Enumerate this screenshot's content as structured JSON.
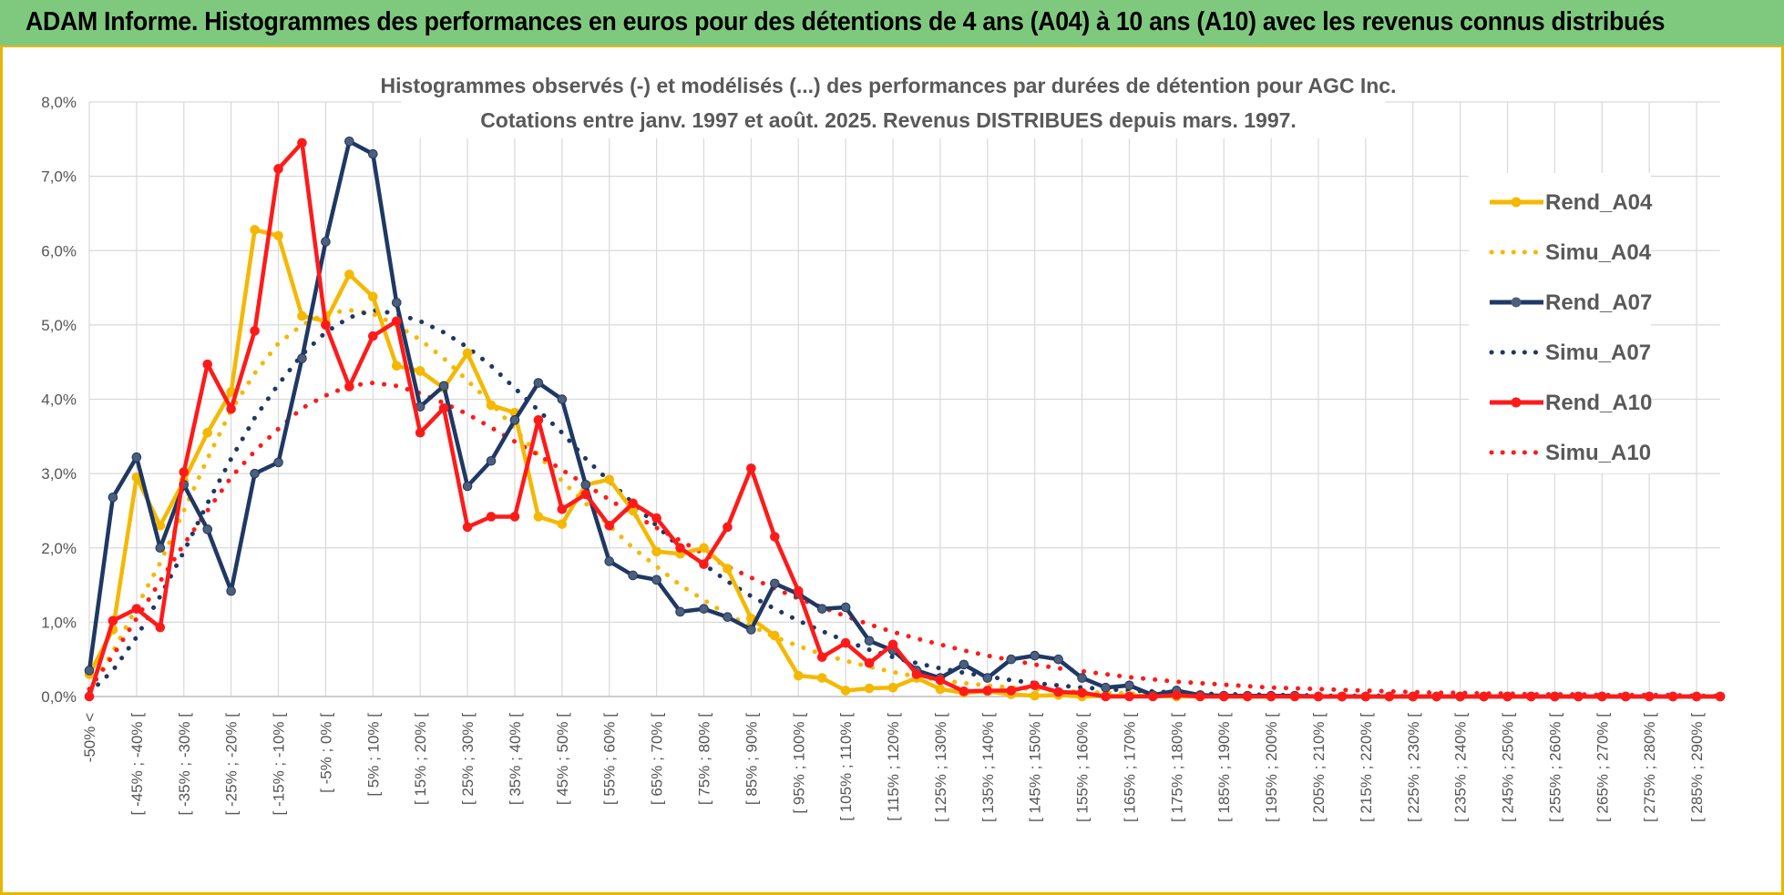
{
  "header": {
    "title": "ADAM Informe. Histogrammes des performances en euros pour des détentions de 4 ans (A04) à 10 ans (A10) avec les revenus connus distribués"
  },
  "chart_data": {
    "type": "line",
    "title_line1": "Histogrammes observés (-) et modélisés (...) des performances par durées de détention pour AGC Inc.",
    "title_line2": "Cotations entre janv. 1997 et août. 2025. Revenus DISTRIBUES depuis mars. 1997.",
    "y_ticks": [
      "0,0%",
      "1,0%",
      "2,0%",
      "3,0%",
      "4,0%",
      "5,0%",
      "6,0%",
      "7,0%",
      "8,0%"
    ],
    "ylim": [
      0,
      8
    ],
    "grid": true,
    "legend_position": "right",
    "categories": [
      "-50% <",
      "[ -50% ; -45% [",
      "[ -45% ; -40% [",
      "[ -40% ; -35% [",
      "[ -35% ; -30% [",
      "[ -30% ; -25% [",
      "[ -25% ; -20% [",
      "[ -20% ; -15% [",
      "[ -15% ; -10% [",
      "[ -10% ; -5% [",
      "[ -5% ; 0% [",
      "[ 0% ; 5% [",
      "[ 5% ; 10% [",
      "[ 10% ; 15% [",
      "[ 15% ; 20% [",
      "[ 20% ; 25% [",
      "[ 25% ; 30% [",
      "[ 30% ; 35% [",
      "[ 35% ; 40% [",
      "[ 40% ; 45% [",
      "[ 45% ; 50% [",
      "[ 50% ; 55% [",
      "[ 55% ; 60% [",
      "[ 60% ; 65% [",
      "[ 65% ; 70% [",
      "[ 70% ; 75% [",
      "[ 75% ; 80% [",
      "[ 80% ; 85% [",
      "[ 85% ; 90% [",
      "[ 90% ; 95% [",
      "[ 95% ; 100% [",
      "[ 100% ; 105% [",
      "[ 105% ; 110% [",
      "[ 110% ; 115% [",
      "[ 115% ; 120% [",
      "[ 120% ; 125% [",
      "[ 125% ; 130% [",
      "[ 130% ; 135% [",
      "[ 135% ; 140% [",
      "[ 140% ; 145% [",
      "[ 145% ; 150% [",
      "[ 150% ; 155% [",
      "[ 155% ; 160% [",
      "[ 160% ; 165% [",
      "[ 165% ; 170% [",
      "[ 170% ; 175% [",
      "[ 175% ; 180% [",
      "[ 180% ; 185% [",
      "[ 185% ; 190% [",
      "[ 190% ; 195% [",
      "[ 195% ; 200% [",
      "[ 200% ; 205% [",
      "[ 205% ; 210% [",
      "[ 210% ; 215% [",
      "[ 215% ; 220% [",
      "[ 220% ; 225% [",
      "[ 225% ; 230% [",
      "[ 230% ; 235% [",
      "[ 235% ; 240% [",
      "[ 240% ; 245% [",
      "[ 245% ; 250% [",
      "[ 250% ; 255% [",
      "[ 255% ; 260% [",
      "[ 260% ; 265% [",
      "[ 265% ; 270% [",
      "[ 270% ; 275% [",
      "[ 275% ; 280% [",
      "[ 280% ; 285% [",
      "[ 285% ; 290% [",
      "[ 290% ; 295% ["
    ],
    "visible_category_labels": [
      "-50% <",
      "[ -45% ; -40% [",
      "[ -35% ; -30% [",
      "[ -25% ; -20% [",
      "[ -15% ; -10% [",
      "[ -5% ; 0% [",
      "[ 5% ; 10% [",
      "[ 15% ; 20% [",
      "[ 25% ; 30% [",
      "[ 35% ; 40% [",
      "[ 45% ; 50% [",
      "[ 55% ; 60% [",
      "[ 65% ; 70% [",
      "[ 75% ; 80% [",
      "[ 85% ; 90% [",
      "[ 95% ; 100% [",
      "[ 105% ; 110% [",
      "[ 115% ; 120% [",
      "[ 125% ; 130% [",
      "[ 135% ; 140% [",
      "[ 145% ; 150% [",
      "[ 155% ; 160% [",
      "[ 165% ; 170% [",
      "[ 175% ; 180% [",
      "[ 185% ; 190% [",
      "[ 195% ; 200% [",
      "[ 205% ; 210% [",
      "[ 215% ; 220% [",
      "[ 225% ; 230% [",
      "[ 235% ; 240% [",
      "[ 245% ; 250% [",
      "[ 255% ; 260% [",
      "[ 265% ; 270% [",
      "[ 275% ; 280% [",
      "[ 285% ; 290% ["
    ],
    "series": [
      {
        "name": "Rend_A04",
        "color": "#f5b800",
        "style": "solid",
        "markers": true,
        "values": [
          0.3,
          0.9,
          2.95,
          2.3,
          2.9,
          3.55,
          4.1,
          6.28,
          6.2,
          5.12,
          5.05,
          5.68,
          5.38,
          4.45,
          4.38,
          4.15,
          4.62,
          3.92,
          3.82,
          2.42,
          2.32,
          2.85,
          2.92,
          2.5,
          1.95,
          1.92,
          2.0,
          1.72,
          1.05,
          0.82,
          0.28,
          0.25,
          0.08,
          0.11,
          0.12,
          0.25,
          0.1,
          0.05,
          0.07,
          0.03,
          0.01,
          0.02,
          0.0,
          0.01,
          0.01,
          0.01,
          0.0,
          0.0,
          0.0,
          0.0,
          0.0,
          0.0,
          0.0,
          0.0,
          0.0,
          0.0,
          0.0,
          0.0,
          0.0,
          0.0,
          0.0,
          0.0,
          0.0,
          0.0,
          0.0,
          0.0,
          0.0,
          0.0,
          0.0,
          0.0
        ]
      },
      {
        "name": "Simu_A04",
        "color": "#f5b800",
        "style": "dotted",
        "markers": false,
        "values": [
          0.1,
          0.6,
          1.2,
          1.8,
          2.5,
          3.2,
          3.85,
          4.35,
          4.75,
          5.0,
          5.15,
          5.2,
          5.15,
          5.0,
          4.8,
          4.55,
          4.25,
          3.95,
          3.6,
          3.25,
          2.9,
          2.6,
          2.3,
          2.0,
          1.75,
          1.5,
          1.3,
          1.1,
          0.95,
          0.8,
          0.68,
          0.57,
          0.48,
          0.4,
          0.33,
          0.27,
          0.22,
          0.18,
          0.15,
          0.12,
          0.1,
          0.08,
          0.06,
          0.05,
          0.04,
          0.03,
          0.02,
          0.02,
          0.01,
          0.01,
          0.01,
          0.01,
          0.0,
          0.0,
          0.0,
          0.0,
          0.0,
          0.0,
          0.0,
          0.0,
          0.0,
          0.0,
          0.0,
          0.0,
          0.0,
          0.0,
          0.0,
          0.0,
          0.0,
          0.0
        ]
      },
      {
        "name": "Rend_A07",
        "color": "#1f3864",
        "style": "solid",
        "markers": true,
        "values": [
          0.35,
          2.68,
          3.22,
          2.0,
          2.85,
          2.25,
          1.42,
          3.0,
          3.15,
          4.55,
          6.12,
          7.47,
          7.3,
          5.3,
          3.9,
          4.18,
          2.83,
          3.17,
          3.72,
          4.22,
          4.0,
          2.85,
          1.82,
          1.63,
          1.57,
          1.14,
          1.18,
          1.07,
          0.9,
          1.52,
          1.38,
          1.18,
          1.2,
          0.75,
          0.62,
          0.35,
          0.25,
          0.43,
          0.25,
          0.5,
          0.55,
          0.5,
          0.25,
          0.12,
          0.15,
          0.02,
          0.08,
          0.02,
          0.01,
          0.01,
          0.01,
          0.01,
          0.0,
          0.0,
          0.0,
          0.0,
          0.0,
          0.0,
          0.0,
          0.0,
          0.0,
          0.0,
          0.0,
          0.0,
          0.0,
          0.0,
          0.0,
          0.0,
          0.0,
          0.0
        ]
      },
      {
        "name": "Simu_A07",
        "color": "#1f3864",
        "style": "dotted",
        "markers": false,
        "values": [
          0.05,
          0.35,
          0.8,
          1.35,
          1.95,
          2.6,
          3.2,
          3.75,
          4.2,
          4.6,
          4.9,
          5.1,
          5.2,
          5.15,
          5.05,
          4.9,
          4.7,
          4.45,
          4.15,
          3.85,
          3.55,
          3.2,
          2.9,
          2.6,
          2.3,
          2.0,
          1.78,
          1.55,
          1.35,
          1.18,
          1.02,
          0.88,
          0.75,
          0.63,
          0.53,
          0.45,
          0.38,
          0.32,
          0.27,
          0.22,
          0.18,
          0.15,
          0.12,
          0.1,
          0.08,
          0.07,
          0.05,
          0.04,
          0.03,
          0.03,
          0.02,
          0.02,
          0.01,
          0.01,
          0.01,
          0.01,
          0.0,
          0.0,
          0.0,
          0.0,
          0.0,
          0.0,
          0.0,
          0.0,
          0.0,
          0.0,
          0.0,
          0.0,
          0.0,
          0.0
        ]
      },
      {
        "name": "Rend_A10",
        "color": "#ff1a1a",
        "style": "solid",
        "markers": true,
        "values": [
          0.0,
          1.02,
          1.18,
          0.93,
          3.02,
          4.47,
          3.87,
          4.92,
          7.1,
          7.45,
          5.0,
          4.17,
          4.85,
          5.05,
          3.55,
          3.88,
          2.28,
          2.42,
          2.42,
          3.72,
          2.52,
          2.72,
          2.3,
          2.6,
          2.4,
          2.0,
          1.78,
          2.28,
          3.07,
          2.15,
          1.42,
          0.53,
          0.72,
          0.45,
          0.7,
          0.3,
          0.22,
          0.07,
          0.08,
          0.08,
          0.15,
          0.06,
          0.05,
          0.0,
          0.0,
          0.0,
          0.02,
          0.0,
          0.0,
          0.0,
          0.0,
          0.0,
          0.0,
          0.0,
          0.0,
          0.0,
          0.0,
          0.0,
          0.0,
          0.0,
          0.0,
          0.0,
          0.0,
          0.0,
          0.0,
          0.0,
          0.0,
          0.0,
          0.0,
          0.0
        ]
      },
      {
        "name": "Simu_A10",
        "color": "#ff1a1a",
        "style": "dotted",
        "markers": false,
        "values": [
          0.1,
          0.55,
          1.05,
          1.55,
          2.05,
          2.5,
          2.95,
          3.3,
          3.6,
          3.88,
          4.05,
          4.18,
          4.22,
          4.18,
          4.08,
          3.95,
          3.8,
          3.62,
          3.43,
          3.25,
          3.05,
          2.85,
          2.65,
          2.45,
          2.27,
          2.1,
          1.92,
          1.75,
          1.6,
          1.45,
          1.32,
          1.2,
          1.08,
          0.97,
          0.87,
          0.78,
          0.7,
          0.62,
          0.55,
          0.49,
          0.43,
          0.38,
          0.34,
          0.3,
          0.26,
          0.23,
          0.2,
          0.18,
          0.16,
          0.14,
          0.12,
          0.11,
          0.1,
          0.09,
          0.08,
          0.07,
          0.06,
          0.05,
          0.05,
          0.04,
          0.04,
          0.03,
          0.03,
          0.03,
          0.02,
          0.02,
          0.02,
          0.02,
          0.01,
          0.01
        ]
      }
    ]
  }
}
